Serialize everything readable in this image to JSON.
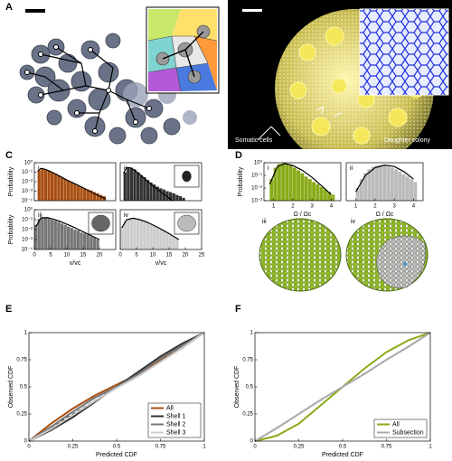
{
  "panel_labels": [
    "A",
    "B",
    "C",
    "D",
    "E",
    "F"
  ],
  "annotations": {
    "somatic": "Somatic cells",
    "daughter": "Daughter colony"
  },
  "render_labels": [
    "iii",
    "iv"
  ],
  "chart_data": [
    {
      "type": "histogram",
      "label": "i",
      "color": "#a84f12",
      "log_y": true,
      "xlim": [
        0,
        25
      ],
      "ylim": [
        0.0001,
        1
      ],
      "yticks": [
        {
          "value": 1,
          "label": "10⁰"
        },
        {
          "value": 0.1,
          "label": "10⁻¹"
        },
        {
          "value": 0.01,
          "label": "10⁻²"
        },
        {
          "value": 0.001,
          "label": "10⁻³"
        },
        {
          "value": 0.0001,
          "label": "10⁻⁴"
        }
      ],
      "ylabel": "Probability",
      "bins": [
        1,
        2,
        3,
        4,
        5,
        6,
        7,
        8,
        9,
        10,
        11,
        12,
        13,
        14,
        15,
        16,
        17,
        18,
        19,
        20,
        21,
        22
      ],
      "values": [
        0.15,
        0.25,
        0.2,
        0.15,
        0.1,
        0.07,
        0.045,
        0.03,
        0.02,
        0.013,
        0.009,
        0.006,
        0.004,
        0.003,
        0.002,
        0.0015,
        0.0012,
        0.0008,
        0.0006,
        0.0004,
        0.0003
      ],
      "fit": {
        "color": "#000",
        "x": [
          1,
          2,
          3,
          4,
          6,
          8,
          10,
          13,
          16,
          20,
          22
        ],
        "values": [
          0.12,
          0.25,
          0.22,
          0.16,
          0.08,
          0.035,
          0.015,
          0.005,
          0.0015,
          0.0003,
          0.00015
        ]
      }
    },
    {
      "type": "histogram",
      "label": "ii",
      "color": "#333333",
      "log_y": true,
      "xlim": [
        0,
        25
      ],
      "ylim": [
        0.0001,
        1
      ],
      "bins": [
        1,
        2,
        3,
        4,
        5,
        6,
        7,
        8,
        9,
        10,
        11,
        12,
        13,
        14,
        15,
        16,
        17,
        18,
        19,
        20
      ],
      "values": [
        0.1,
        0.3,
        0.3,
        0.2,
        0.1,
        0.05,
        0.03,
        0.015,
        0.008,
        0.005,
        0.003,
        0.002,
        0.0015,
        0.001,
        0.0008,
        0.0006,
        0.0004,
        0.0003,
        0.0002
      ],
      "fit": {
        "color": "#000",
        "x": [
          1,
          2,
          3,
          4,
          6,
          8,
          10,
          13,
          16
        ],
        "values": [
          0.08,
          0.3,
          0.3,
          0.2,
          0.06,
          0.015,
          0.004,
          0.0006,
          0.0001
        ]
      }
    },
    {
      "type": "histogram",
      "label": "iii",
      "color": "#777777",
      "log_y": true,
      "xlim": [
        0,
        25
      ],
      "ylim": [
        0.0001,
        1
      ],
      "yticks": [
        {
          "value": 1,
          "label": "10⁰"
        },
        {
          "value": 0.1,
          "label": "10⁻¹"
        },
        {
          "value": 0.01,
          "label": "10⁻²"
        },
        {
          "value": 0.001,
          "label": "10⁻³"
        },
        {
          "value": 0.0001,
          "label": "10⁻⁴"
        }
      ],
      "ylabel": "Probability",
      "xticks": [
        0,
        5,
        10,
        15,
        20
      ],
      "xlabel": "v/vc",
      "bins": [
        0,
        1,
        2,
        3,
        4,
        5,
        6,
        7,
        8,
        9,
        10,
        11,
        12,
        13,
        14,
        15,
        16,
        17,
        18,
        19,
        20
      ],
      "values": [
        0.03,
        0.12,
        0.18,
        0.17,
        0.14,
        0.1,
        0.08,
        0.06,
        0.04,
        0.03,
        0.02,
        0.015,
        0.01,
        0.008,
        0.005,
        0.004,
        0.003,
        0.002,
        0.0015,
        0.001
      ],
      "fit": {
        "color": "#000",
        "x": [
          0.5,
          2,
          4,
          6,
          8,
          10,
          12,
          15,
          18,
          20
        ],
        "values": [
          0.02,
          0.15,
          0.16,
          0.11,
          0.065,
          0.035,
          0.018,
          0.006,
          0.002,
          0.001
        ]
      }
    },
    {
      "type": "histogram",
      "label": "iv",
      "color": "#cccccc",
      "log_y": true,
      "xlim": [
        0,
        25
      ],
      "ylim": [
        0.0001,
        1
      ],
      "xticks": [
        0,
        5,
        10,
        15,
        20,
        25
      ],
      "xlabel": "v/vc",
      "bins": [
        0,
        1,
        2,
        3,
        4,
        5,
        6,
        7,
        8,
        9,
        10,
        11,
        12,
        13,
        14,
        15,
        16,
        17,
        18
      ],
      "values": [
        0.02,
        0.08,
        0.13,
        0.14,
        0.13,
        0.11,
        0.09,
        0.07,
        0.05,
        0.035,
        0.025,
        0.018,
        0.012,
        0.008,
        0.005,
        0.003,
        0.002,
        0.0012
      ],
      "fit": {
        "color": "#000",
        "x": [
          0.5,
          2,
          4,
          6,
          8,
          10,
          12,
          15,
          18
        ],
        "values": [
          0.015,
          0.1,
          0.14,
          0.1,
          0.06,
          0.03,
          0.014,
          0.004,
          0.001
        ]
      }
    },
    {
      "type": "histogram",
      "label": "i",
      "color": "#8aab1a",
      "log_y": true,
      "xlim": [
        0.5,
        4.5
      ],
      "ylim": [
        0.001,
        1
      ],
      "yticks": [
        {
          "value": 1,
          "label": "10⁰"
        },
        {
          "value": 0.1,
          "label": "10⁻¹"
        },
        {
          "value": 0.01,
          "label": "10⁻²"
        },
        {
          "value": 0.001,
          "label": "10⁻³"
        }
      ],
      "ylabel": "Probability",
      "xticks": [
        1,
        2,
        3,
        4
      ],
      "xlabel": "Ω / Ωc",
      "bins": [
        0.8,
        1.0,
        1.2,
        1.4,
        1.6,
        1.8,
        2.0,
        2.2,
        2.4,
        2.6,
        2.8,
        3.0,
        3.2,
        3.4,
        3.6,
        3.8,
        4.0,
        4.2
      ],
      "values": [
        0.05,
        0.4,
        0.8,
        0.9,
        0.8,
        0.6,
        0.4,
        0.25,
        0.15,
        0.08,
        0.05,
        0.03,
        0.02,
        0.012,
        0.008,
        0.005,
        0.003
      ],
      "fit": {
        "color": "#000",
        "x": [
          0.8,
          1.2,
          1.6,
          2,
          2.5,
          3,
          3.5,
          4
        ],
        "values": [
          0.02,
          0.5,
          0.85,
          0.6,
          0.25,
          0.07,
          0.015,
          0.003
        ]
      }
    },
    {
      "type": "histogram",
      "label": "ii",
      "color": "#bbbbbb",
      "log_y": true,
      "xlim": [
        0.5,
        4.5
      ],
      "ylim": [
        0.001,
        1
      ],
      "xticks": [
        1,
        2,
        3,
        4
      ],
      "xlabel": "Ω / Ωc",
      "bins": [
        1.0,
        1.2,
        1.4,
        1.6,
        1.8,
        2.0,
        2.2,
        2.4,
        2.6,
        2.8,
        3.0,
        3.2,
        3.4,
        3.6,
        3.8,
        4.0,
        4.2
      ],
      "values": [
        0.01,
        0.05,
        0.15,
        0.3,
        0.5,
        0.6,
        0.65,
        0.6,
        0.5,
        0.4,
        0.3,
        0.2,
        0.12,
        0.08,
        0.05,
        0.03
      ],
      "fit": {
        "color": "#000",
        "x": [
          1,
          1.5,
          2,
          2.5,
          3,
          3.5,
          4
        ],
        "values": [
          0.005,
          0.1,
          0.4,
          0.65,
          0.5,
          0.2,
          0.05
        ]
      }
    },
    {
      "type": "line",
      "xlabel": "Predicted CDF",
      "ylabel": "Observed CDF",
      "xlim": [
        0,
        1
      ],
      "ylim": [
        0,
        1
      ],
      "xticks": [
        0,
        0.25,
        0.5,
        0.75,
        1
      ],
      "yticks": [
        0,
        0.25,
        0.5,
        0.75,
        1
      ],
      "legend": "lower right",
      "x": [
        0,
        0.125,
        0.25,
        0.375,
        0.5,
        0.625,
        0.75,
        0.875,
        1
      ],
      "series": [
        {
          "name": "All",
          "color": "#a84f12",
          "values": [
            0,
            0.16,
            0.3,
            0.42,
            0.52,
            0.62,
            0.74,
            0.86,
            1
          ]
        },
        {
          "name": "Shell 1",
          "color": "#333333",
          "values": [
            0,
            0.1,
            0.22,
            0.36,
            0.5,
            0.64,
            0.78,
            0.9,
            1
          ]
        },
        {
          "name": "Shell 2",
          "color": "#777777",
          "values": [
            0,
            0.13,
            0.27,
            0.4,
            0.5,
            0.62,
            0.76,
            0.88,
            1
          ]
        },
        {
          "name": "Shell 3",
          "color": "#cccccc",
          "values": [
            0,
            0.11,
            0.24,
            0.37,
            0.49,
            0.6,
            0.73,
            0.86,
            1
          ]
        }
      ]
    },
    {
      "type": "line",
      "xlabel": "Predicted CDF",
      "ylabel": "Observed CDF",
      "xlim": [
        0,
        1
      ],
      "ylim": [
        0,
        1
      ],
      "xticks": [
        0,
        0.25,
        0.5,
        0.75,
        1
      ],
      "yticks": [
        0,
        0.25,
        0.5,
        0.75,
        1
      ],
      "legend": "lower right",
      "x": [
        0,
        0.125,
        0.25,
        0.375,
        0.5,
        0.625,
        0.75,
        0.875,
        1
      ],
      "series": [
        {
          "name": "All",
          "color": "#8aab1a",
          "values": [
            0,
            0.05,
            0.16,
            0.33,
            0.5,
            0.67,
            0.82,
            0.93,
            1
          ]
        },
        {
          "name": "Subsection",
          "color": "#aaaaaa",
          "values": [
            0,
            0.12,
            0.25,
            0.38,
            0.5,
            0.62,
            0.75,
            0.87,
            1
          ]
        }
      ]
    }
  ]
}
